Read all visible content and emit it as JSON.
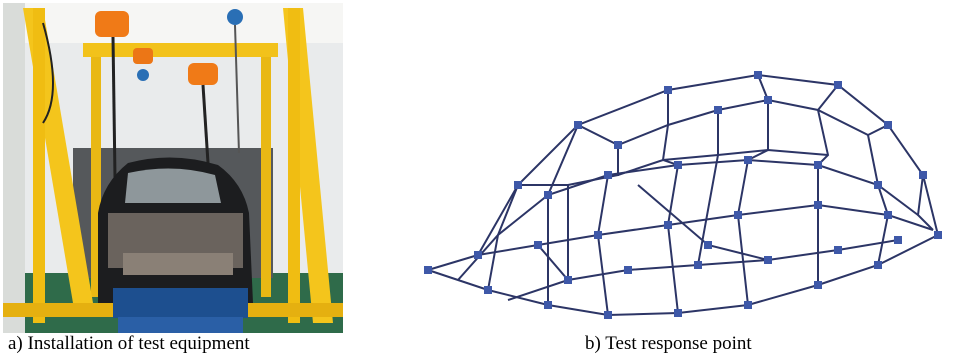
{
  "figure": {
    "panels": [
      {
        "caption": "a) Installation of test equipment"
      },
      {
        "caption": "b) Test response point"
      }
    ]
  }
}
